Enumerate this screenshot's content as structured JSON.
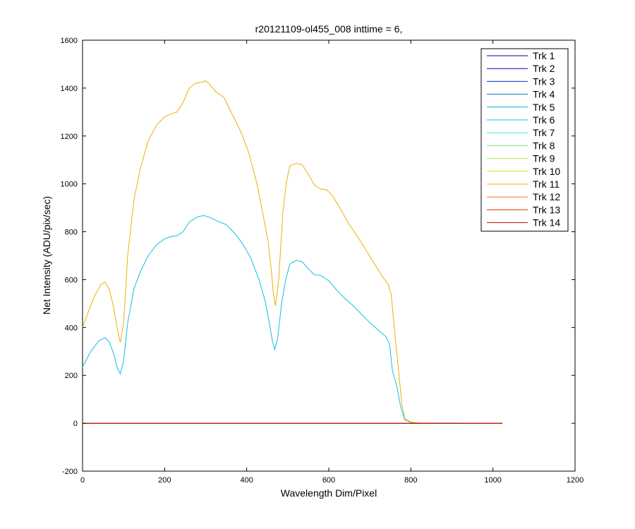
{
  "chart_data": {
    "type": "line",
    "title": "r20121109-ol455_008 inttime = 6,",
    "xlabel": "Wavelength Dim/Pixel",
    "ylabel": "Net Intensity (ADU/pix/sec)",
    "xlim": [
      0,
      1200
    ],
    "ylim": [
      -200,
      1600
    ],
    "xticks": [
      0,
      200,
      400,
      600,
      800,
      1000,
      1200
    ],
    "yticks": [
      -200,
      0,
      200,
      400,
      600,
      800,
      1000,
      1200,
      1400,
      1600
    ],
    "grid": false,
    "legend_position": "top-right",
    "series": [
      {
        "name": "Trk 1",
        "color": "#00008F",
        "points": [
          [
            0,
            0
          ],
          [
            1023,
            0
          ]
        ]
      },
      {
        "name": "Trk 2",
        "color": "#0000BF",
        "points": [
          [
            0,
            0
          ],
          [
            1023,
            0
          ]
        ]
      },
      {
        "name": "Trk 3",
        "color": "#0030DF",
        "points": [
          [
            0,
            0
          ],
          [
            1023,
            0
          ]
        ]
      },
      {
        "name": "Trk 4",
        "color": "#0078C8",
        "points": [
          [
            0,
            0
          ],
          [
            1023,
            0
          ]
        ]
      },
      {
        "name": "Trk 5",
        "color": "#00B0D8",
        "points": [
          [
            0,
            0
          ],
          [
            1023,
            0
          ]
        ]
      },
      {
        "name": "Trk 6",
        "color": "#10C0E0",
        "points": [
          [
            0,
            235
          ],
          [
            20,
            300
          ],
          [
            40,
            345
          ],
          [
            55,
            358
          ],
          [
            65,
            340
          ],
          [
            75,
            295
          ],
          [
            85,
            230
          ],
          [
            92,
            207
          ],
          [
            100,
            260
          ],
          [
            110,
            420
          ],
          [
            125,
            560
          ],
          [
            140,
            630
          ],
          [
            160,
            700
          ],
          [
            180,
            745
          ],
          [
            200,
            770
          ],
          [
            215,
            780
          ],
          [
            230,
            783
          ],
          [
            245,
            800
          ],
          [
            260,
            840
          ],
          [
            280,
            862
          ],
          [
            295,
            868
          ],
          [
            310,
            860
          ],
          [
            330,
            843
          ],
          [
            350,
            830
          ],
          [
            370,
            795
          ],
          [
            390,
            750
          ],
          [
            410,
            690
          ],
          [
            430,
            600
          ],
          [
            445,
            510
          ],
          [
            455,
            420
          ],
          [
            463,
            340
          ],
          [
            468,
            308
          ],
          [
            475,
            350
          ],
          [
            485,
            500
          ],
          [
            495,
            600
          ],
          [
            505,
            665
          ],
          [
            520,
            680
          ],
          [
            535,
            675
          ],
          [
            550,
            645
          ],
          [
            565,
            620
          ],
          [
            580,
            618
          ],
          [
            600,
            595
          ],
          [
            620,
            555
          ],
          [
            640,
            520
          ],
          [
            660,
            490
          ],
          [
            680,
            455
          ],
          [
            700,
            420
          ],
          [
            720,
            390
          ],
          [
            740,
            360
          ],
          [
            748,
            330
          ],
          [
            755,
            220
          ],
          [
            765,
            160
          ],
          [
            775,
            70
          ],
          [
            785,
            15
          ],
          [
            800,
            3
          ],
          [
            820,
            1
          ],
          [
            1023,
            0
          ]
        ]
      },
      {
        "name": "Trk 7",
        "color": "#40E0E0",
        "points": [
          [
            0,
            0
          ],
          [
            1023,
            0
          ]
        ]
      },
      {
        "name": "Trk 8",
        "color": "#80E080",
        "points": [
          [
            0,
            0
          ],
          [
            1023,
            0
          ]
        ]
      },
      {
        "name": "Trk 9",
        "color": "#B0E040",
        "points": [
          [
            0,
            0
          ],
          [
            1023,
            0
          ]
        ]
      },
      {
        "name": "Trk 10",
        "color": "#D8E000",
        "points": [
          [
            0,
            0
          ],
          [
            1023,
            0
          ]
        ]
      },
      {
        "name": "Trk 11",
        "color": "#EEB000",
        "points": [
          [
            0,
            400
          ],
          [
            15,
            470
          ],
          [
            30,
            535
          ],
          [
            45,
            580
          ],
          [
            55,
            590
          ],
          [
            65,
            560
          ],
          [
            75,
            490
          ],
          [
            85,
            390
          ],
          [
            92,
            338
          ],
          [
            100,
            420
          ],
          [
            110,
            700
          ],
          [
            125,
            930
          ],
          [
            140,
            1060
          ],
          [
            160,
            1180
          ],
          [
            180,
            1245
          ],
          [
            200,
            1280
          ],
          [
            215,
            1292
          ],
          [
            230,
            1300
          ],
          [
            245,
            1340
          ],
          [
            260,
            1400
          ],
          [
            275,
            1420
          ],
          [
            290,
            1425
          ],
          [
            300,
            1430
          ],
          [
            310,
            1415
          ],
          [
            325,
            1385
          ],
          [
            345,
            1360
          ],
          [
            365,
            1290
          ],
          [
            385,
            1220
          ],
          [
            405,
            1130
          ],
          [
            425,
            1000
          ],
          [
            440,
            870
          ],
          [
            452,
            760
          ],
          [
            460,
            640
          ],
          [
            465,
            540
          ],
          [
            470,
            490
          ],
          [
            478,
            600
          ],
          [
            488,
            880
          ],
          [
            497,
            1010
          ],
          [
            505,
            1075
          ],
          [
            520,
            1085
          ],
          [
            535,
            1080
          ],
          [
            550,
            1040
          ],
          [
            565,
            995
          ],
          [
            580,
            978
          ],
          [
            595,
            975
          ],
          [
            610,
            948
          ],
          [
            630,
            890
          ],
          [
            650,
            830
          ],
          [
            670,
            780
          ],
          [
            690,
            725
          ],
          [
            710,
            670
          ],
          [
            730,
            615
          ],
          [
            745,
            580
          ],
          [
            752,
            540
          ],
          [
            760,
            390
          ],
          [
            770,
            220
          ],
          [
            778,
            80
          ],
          [
            785,
            20
          ],
          [
            800,
            5
          ],
          [
            820,
            1
          ],
          [
            1023,
            0
          ]
        ]
      },
      {
        "name": "Trk 12",
        "color": "#FF7020",
        "points": [
          [
            0,
            0
          ],
          [
            1023,
            0
          ]
        ]
      },
      {
        "name": "Trk 13",
        "color": "#E83000",
        "points": [
          [
            0,
            0
          ],
          [
            1023,
            0
          ]
        ]
      },
      {
        "name": "Trk 14",
        "color": "#C00000",
        "points": [
          [
            0,
            0
          ],
          [
            1023,
            0
          ]
        ]
      }
    ]
  }
}
